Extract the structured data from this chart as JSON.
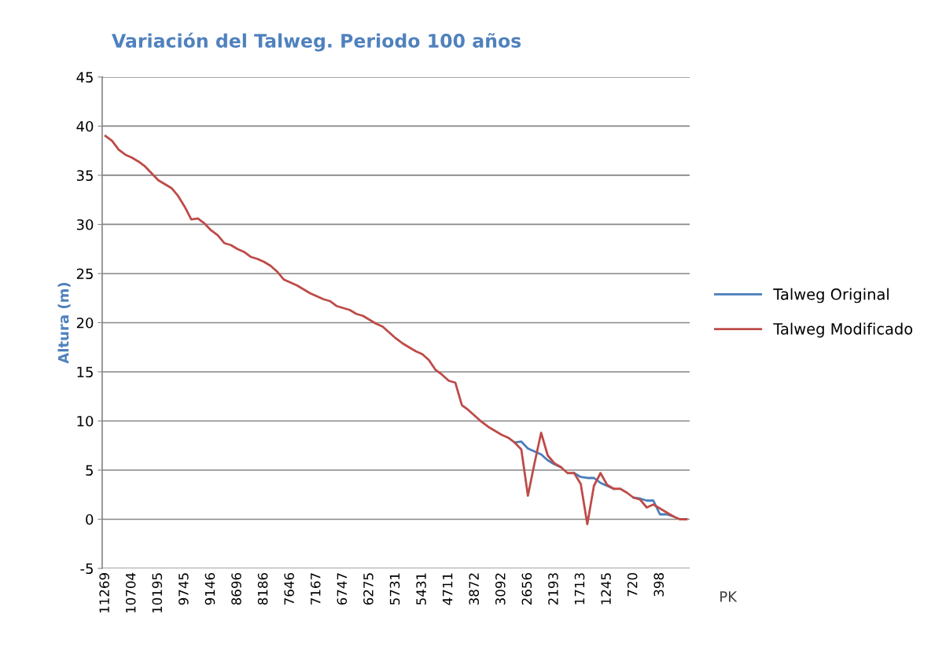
{
  "chart_data": {
    "type": "line",
    "title": "Variación del Talweg. Periodo 100 años",
    "ylabel": "Altura (m)",
    "xlabel": "PK",
    "categories": [
      "11269",
      null,
      null,
      null,
      "10704",
      null,
      null,
      null,
      "10195",
      null,
      null,
      null,
      "9745",
      null,
      null,
      null,
      "9146",
      null,
      null,
      null,
      "8696",
      null,
      null,
      null,
      "8186",
      null,
      null,
      null,
      "7646",
      null,
      null,
      null,
      "7167",
      null,
      null,
      null,
      "6747",
      null,
      null,
      null,
      "6275",
      null,
      null,
      null,
      "5731",
      null,
      null,
      null,
      "5431",
      null,
      null,
      null,
      "4711",
      null,
      null,
      null,
      "3872",
      null,
      null,
      null,
      "3092",
      null,
      null,
      null,
      "2656",
      null,
      null,
      null,
      "2193",
      null,
      null,
      null,
      "1713",
      null,
      null,
      null,
      "1245",
      null,
      null,
      null,
      "720",
      null,
      null,
      null,
      "398",
      null,
      null,
      null,
      null
    ],
    "series": [
      {
        "name": "Talweg Original",
        "color": "#4a7ebb",
        "values": [
          null,
          null,
          null,
          null,
          null,
          null,
          null,
          null,
          null,
          null,
          null,
          null,
          null,
          null,
          null,
          null,
          null,
          null,
          null,
          null,
          null,
          null,
          null,
          null,
          null,
          null,
          null,
          null,
          null,
          null,
          null,
          null,
          null,
          null,
          null,
          null,
          null,
          null,
          null,
          null,
          null,
          null,
          null,
          null,
          null,
          null,
          null,
          null,
          null,
          null,
          null,
          null,
          null,
          null,
          null,
          null,
          null,
          null,
          null,
          null,
          null,
          null,
          7.8,
          7.9,
          7.2,
          6.9,
          6.6,
          6.0,
          5.6,
          5.3,
          null,
          4.7,
          4.3,
          4.2,
          4.2,
          3.7,
          3.4,
          3.1,
          null,
          null,
          2.2,
          2.1,
          1.9,
          1.9,
          0.5,
          0.5,
          0.3,
          null,
          null
        ]
      },
      {
        "name": "Talweg Modificado",
        "color": "#be4b48",
        "values": [
          39.0,
          38.5,
          37.6,
          37.1,
          36.8,
          36.4,
          35.9,
          35.2,
          34.5,
          34.1,
          33.7,
          32.9,
          31.8,
          30.5,
          30.6,
          30.1,
          29.4,
          28.9,
          28.1,
          27.9,
          27.5,
          27.2,
          26.7,
          26.5,
          26.2,
          25.8,
          25.2,
          24.4,
          24.1,
          23.8,
          23.4,
          23.0,
          22.7,
          22.4,
          22.2,
          21.7,
          21.5,
          21.3,
          20.9,
          20.7,
          20.3,
          19.9,
          19.6,
          19.0,
          18.4,
          17.9,
          17.5,
          17.1,
          16.8,
          16.2,
          15.2,
          14.7,
          14.1,
          13.9,
          11.6,
          11.1,
          10.5,
          9.9,
          9.4,
          9.0,
          8.6,
          8.3,
          7.8,
          7.1,
          2.4,
          5.7,
          8.8,
          6.5,
          5.7,
          5.3,
          4.7,
          4.7,
          3.6,
          -0.5,
          3.4,
          4.7,
          3.5,
          3.1,
          3.1,
          2.7,
          2.2,
          2.0,
          1.2,
          1.5,
          1.1,
          0.7,
          0.3,
          0.0,
          0.0
        ]
      }
    ],
    "ylim": [
      -5,
      45
    ],
    "yticks": [
      -5,
      0,
      5,
      10,
      15,
      20,
      25,
      30,
      35,
      40,
      45
    ],
    "grid": "y",
    "legend": "right"
  }
}
